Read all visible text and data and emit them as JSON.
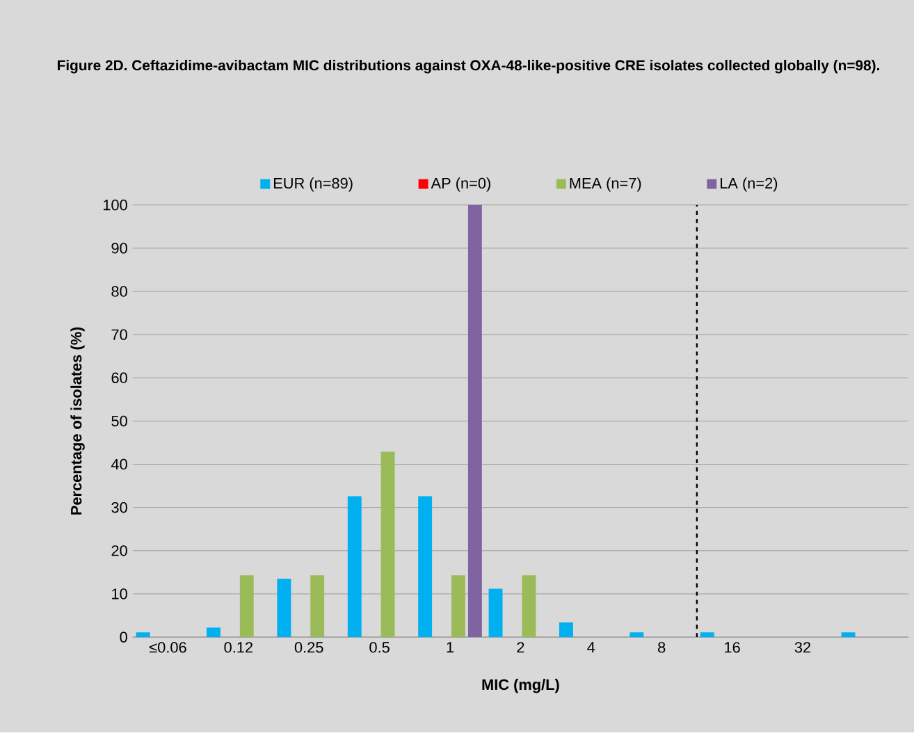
{
  "chart_data": {
    "type": "bar",
    "title": "Figure 2D. Ceftazidime-avibactam MIC distributions against OXA-48-like-positive CRE isolates collected globally (n=98).",
    "xlabel": "MIC (mg/L)",
    "ylabel": "Percentage of isolates (%)",
    "categories": [
      "≤0.06",
      "0.12",
      "0.25",
      "0.5",
      "1",
      "2",
      "4",
      "8",
      "16",
      "32",
      null
    ],
    "series": [
      {
        "name": "EUR (n=89)",
        "color": "#00b0f0",
        "values": [
          1.1,
          2.2,
          13.5,
          32.6,
          32.6,
          11.2,
          3.4,
          1.1,
          1.1,
          0,
          1.1
        ]
      },
      {
        "name": "AP (n=0)",
        "color": "#ff0000",
        "values": [
          0,
          0,
          0,
          0,
          0,
          0,
          0,
          0,
          0,
          0,
          0
        ]
      },
      {
        "name": "MEA (n=7)",
        "color": "#9bbb59",
        "values": [
          0,
          14.3,
          14.3,
          42.9,
          14.3,
          14.3,
          0,
          0,
          0,
          0,
          0
        ]
      },
      {
        "name": "LA (n=2)",
        "color": "#8064a2",
        "values": [
          0,
          0,
          0,
          0,
          100,
          0,
          0,
          0,
          0,
          0,
          0
        ]
      }
    ],
    "ylim": [
      0,
      100
    ],
    "yticks": [
      0,
      10,
      20,
      30,
      40,
      50,
      60,
      70,
      80,
      90,
      100
    ],
    "grid": "y",
    "legend": "top",
    "ref_lines": [
      {
        "axis": "x",
        "value": "8",
        "color": "#000000",
        "line_style": "dashed"
      }
    ]
  }
}
